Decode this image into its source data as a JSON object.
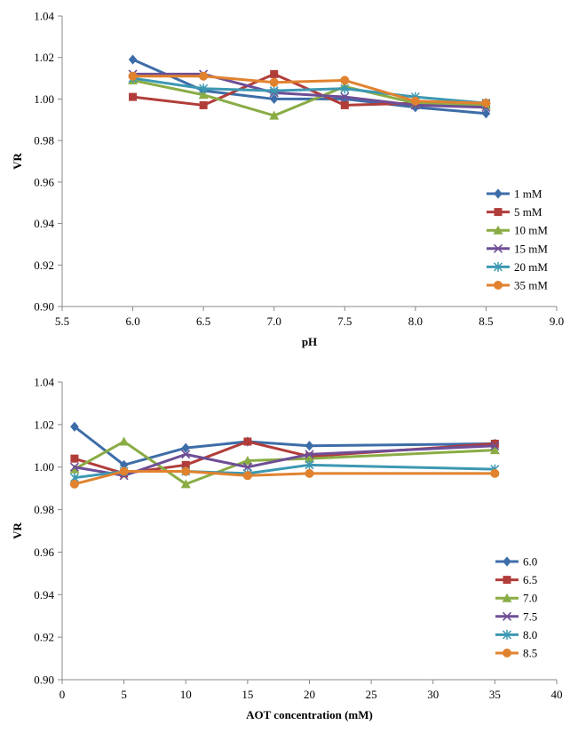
{
  "chart_data": [
    {
      "type": "line",
      "xlabel": "pH",
      "ylabel": "VR",
      "xlim": [
        5.5,
        9.0
      ],
      "ylim": [
        0.9,
        1.04
      ],
      "xticks": [
        "5.5",
        "6.0",
        "6.5",
        "7.0",
        "7.5",
        "8.0",
        "8.5",
        "9.0"
      ],
      "yticks": [
        "0.90",
        "0.92",
        "0.94",
        "0.96",
        "0.98",
        "1.00",
        "1.02",
        "1.04"
      ],
      "legend_position": "bottom-right",
      "x": [
        6.0,
        6.5,
        7.0,
        7.5,
        8.0,
        8.5
      ],
      "series": [
        {
          "name": "1 mM",
          "color": "#3d6da8",
          "marker": "diamond",
          "values": [
            1.019,
            1.004,
            1.0,
            1.0,
            0.996,
            0.993
          ]
        },
        {
          "name": "5 mM",
          "color": "#b13d3a",
          "marker": "square",
          "values": [
            1.001,
            0.997,
            1.012,
            0.997,
            0.998,
            0.998
          ]
        },
        {
          "name": "10 mM",
          "color": "#8aac45",
          "marker": "triangle",
          "values": [
            1.009,
            1.002,
            0.992,
            1.006,
            0.998,
            0.997
          ]
        },
        {
          "name": "15 mM",
          "color": "#6e4e96",
          "marker": "x",
          "values": [
            1.012,
            1.012,
            1.003,
            1.001,
            0.997,
            0.996
          ]
        },
        {
          "name": "20 mM",
          "color": "#3c98b2",
          "marker": "star",
          "values": [
            1.01,
            1.005,
            1.004,
            1.005,
            1.001,
            0.998
          ]
        },
        {
          "name": "35 mM",
          "color": "#e1822f",
          "marker": "circle",
          "values": [
            1.011,
            1.011,
            1.008,
            1.009,
            0.999,
            0.998
          ]
        }
      ]
    },
    {
      "type": "line",
      "xlabel": "AOT concentration (mM)",
      "ylabel": "VR",
      "xlim": [
        0,
        40
      ],
      "ylim": [
        0.9,
        1.04
      ],
      "xticks": [
        "0",
        "5",
        "10",
        "15",
        "20",
        "25",
        "30",
        "35",
        "40"
      ],
      "yticks": [
        "0.90",
        "0.92",
        "0.94",
        "0.96",
        "0.98",
        "1.00",
        "1.02",
        "1.04"
      ],
      "legend_position": "bottom-right",
      "x": [
        1,
        5,
        10,
        15,
        20,
        35
      ],
      "series": [
        {
          "name": "6.0",
          "color": "#3d6da8",
          "marker": "diamond",
          "values": [
            1.019,
            1.001,
            1.009,
            1.012,
            1.01,
            1.011
          ]
        },
        {
          "name": "6.5",
          "color": "#b13d3a",
          "marker": "square",
          "values": [
            1.004,
            0.997,
            1.001,
            1.012,
            1.005,
            1.011
          ]
        },
        {
          "name": "7.0",
          "color": "#8aac45",
          "marker": "triangle",
          "values": [
            0.999,
            1.012,
            0.992,
            1.003,
            1.004,
            1.008
          ]
        },
        {
          "name": "7.5",
          "color": "#6e4e96",
          "marker": "x",
          "values": [
            1.0,
            0.996,
            1.006,
            1.0,
            1.006,
            1.01
          ]
        },
        {
          "name": "8.0",
          "color": "#3c98b2",
          "marker": "star",
          "values": [
            0.995,
            0.998,
            0.998,
            0.997,
            1.001,
            0.999
          ]
        },
        {
          "name": "8.5",
          "color": "#e1822f",
          "marker": "circle",
          "values": [
            0.992,
            0.998,
            0.998,
            0.996,
            0.997,
            0.997
          ]
        }
      ]
    }
  ]
}
